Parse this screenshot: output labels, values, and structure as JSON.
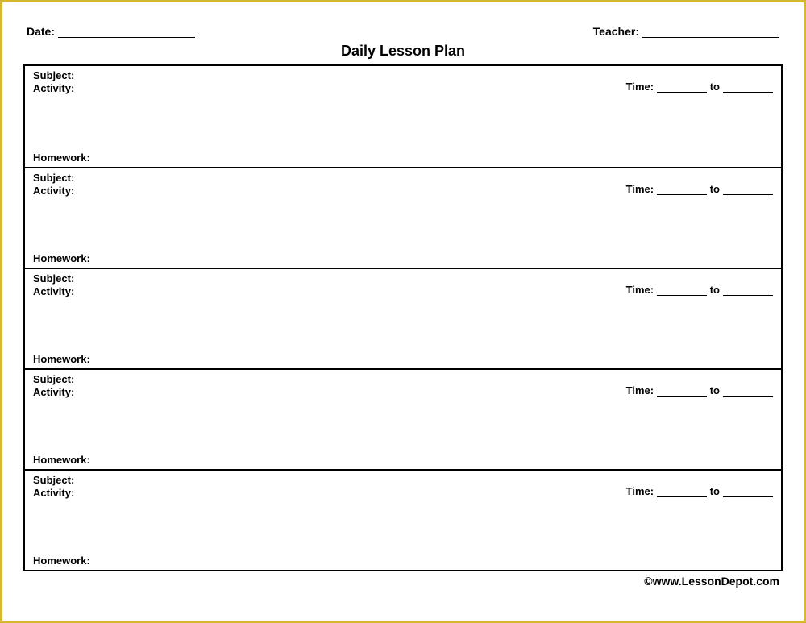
{
  "colors": {
    "border_outer": "#d4b82e",
    "border_inner": "#000000",
    "text": "#000000",
    "background": "#ffffff"
  },
  "header": {
    "date_label": "Date:",
    "teacher_label": "Teacher:"
  },
  "title": "Daily Lesson Plan",
  "row_labels": {
    "subject": "Subject:",
    "activity": "Activity:",
    "time": "Time:",
    "to": "to",
    "homework": "Homework:"
  },
  "row_count": 5,
  "footer": "©www.LessonDepot.com"
}
